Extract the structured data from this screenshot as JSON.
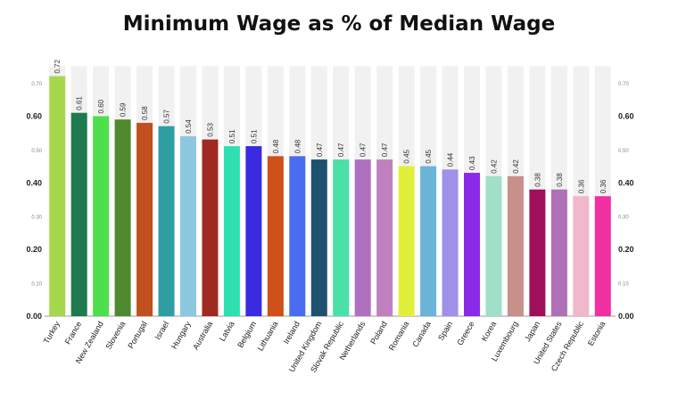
{
  "chart_data": {
    "type": "bar",
    "title": "Minimum Wage as % of Median Wage",
    "xlabel": "",
    "ylabel": "",
    "ylim": [
      0,
      0.75
    ],
    "grid": false,
    "categories": [
      "Turkey",
      "France",
      "New Zealand",
      "Slovenia",
      "Portugal",
      "Israel",
      "Hungary",
      "Australia",
      "Latvia",
      "Belgium",
      "Lithuania",
      "Ireland",
      "United Kingdom",
      "Slovak Republic",
      "Netherlands",
      "Poland",
      "Romania",
      "Canada",
      "Spain",
      "Greece",
      "Korea",
      "Luxembourg",
      "Japan",
      "United States",
      "Czech Republic",
      "Estonia"
    ],
    "values": [
      0.72,
      0.61,
      0.6,
      0.59,
      0.58,
      0.57,
      0.54,
      0.53,
      0.51,
      0.51,
      0.48,
      0.48,
      0.47,
      0.47,
      0.47,
      0.47,
      0.45,
      0.45,
      0.44,
      0.43,
      0.42,
      0.42,
      0.38,
      0.38,
      0.36,
      0.36
    ],
    "value_labels": [
      "0.72",
      "0.61",
      "0.60",
      "0.59",
      "0.58",
      "0.57",
      "0.54",
      "0.53",
      "0.51",
      "0.51",
      "0.48",
      "0.48",
      "0.47",
      "0.47",
      "0.47",
      "0.47",
      "0.45",
      "0.45",
      "0.44",
      "0.43",
      "0.42",
      "0.42",
      "0.38",
      "0.38",
      "0.36",
      "0.36"
    ],
    "colors": [
      "#a6d84e",
      "#1f7a50",
      "#4de04a",
      "#4f8a2e",
      "#c0501e",
      "#2f9ea3",
      "#8ec8e0",
      "#9e2a22",
      "#2ee0b0",
      "#3a2ae0",
      "#d0501a",
      "#4a6cf0",
      "#1f5070",
      "#4ae0a8",
      "#b070c0",
      "#c080c0",
      "#e0f03a",
      "#6ab4d8",
      "#a090e8",
      "#8a2ae8",
      "#a0e0c8",
      "#c8908a",
      "#a0105a",
      "#b070b8",
      "#f0b8cc",
      "#f030a0"
    ],
    "y_ticks": [
      {
        "value": 0.0,
        "label": "0.00",
        "major": true
      },
      {
        "value": 0.1,
        "label": "0.10",
        "major": false
      },
      {
        "value": 0.2,
        "label": "0.20",
        "major": true
      },
      {
        "value": 0.3,
        "label": "0.30",
        "major": false
      },
      {
        "value": 0.4,
        "label": "0.40",
        "major": true
      },
      {
        "value": 0.5,
        "label": "0.50",
        "major": false
      },
      {
        "value": 0.6,
        "label": "0.60",
        "major": true
      },
      {
        "value": 0.7,
        "label": "0.70",
        "major": false
      }
    ]
  }
}
